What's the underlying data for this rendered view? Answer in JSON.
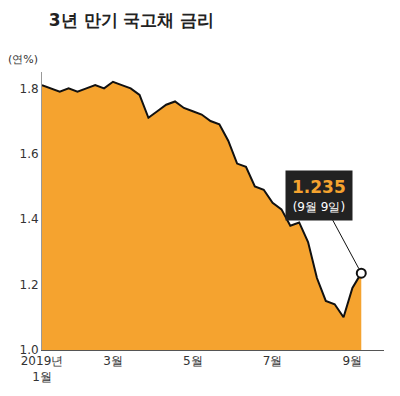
{
  "chart_data": {
    "type": "area",
    "title": "3년 만기 국고채 금리",
    "ylabel": "(연%)",
    "categories": [
      "2019년\n1월",
      null,
      null,
      null,
      null,
      null,
      null,
      null,
      "3월",
      null,
      null,
      null,
      null,
      null,
      null,
      null,
      null,
      "5월",
      null,
      null,
      null,
      null,
      null,
      null,
      null,
      null,
      "7월",
      null,
      null,
      null,
      null,
      null,
      null,
      null,
      null,
      "9월",
      null
    ],
    "values": [
      1.81,
      1.8,
      1.79,
      1.8,
      1.79,
      1.8,
      1.81,
      1.8,
      1.82,
      1.81,
      1.8,
      1.78,
      1.71,
      1.73,
      1.75,
      1.76,
      1.74,
      1.73,
      1.72,
      1.7,
      1.69,
      1.64,
      1.57,
      1.56,
      1.5,
      1.49,
      1.45,
      1.43,
      1.38,
      1.39,
      1.33,
      1.22,
      1.15,
      1.14,
      1.1,
      1.19,
      1.235
    ],
    "color": "#F5A32F",
    "ylim": [
      1.0,
      1.85
    ],
    "yticks": [
      {
        "value": 1.0,
        "label": "1.0"
      },
      1.2,
      1.4,
      1.6,
      1.8
    ],
    "grid": false,
    "annotations": [
      {
        "index": 36,
        "text": "1.235",
        "subtext": "(9월 9일)"
      }
    ]
  }
}
